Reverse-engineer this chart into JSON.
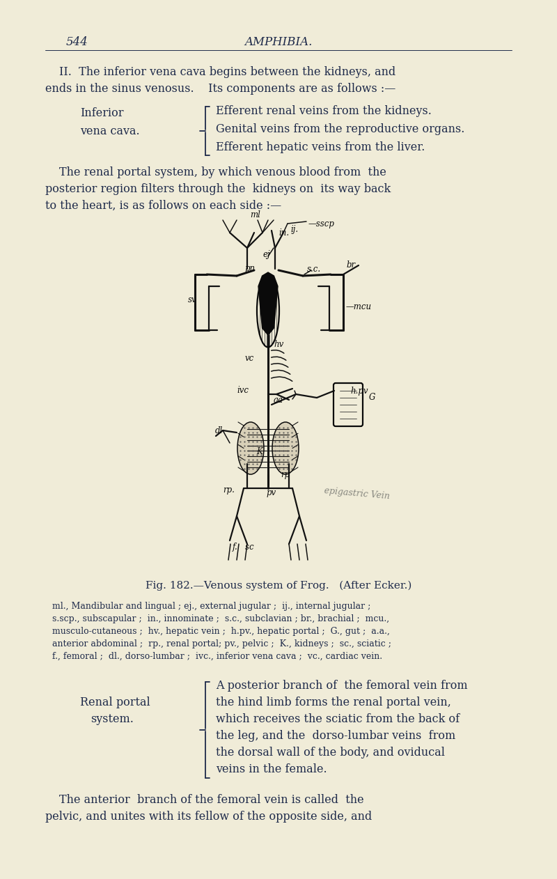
{
  "background_color": "#f0ecd8",
  "text_color": "#1e2a4a",
  "page_number": "544",
  "page_header": "AMPHIBIA.",
  "para1_line1": "II.  The inferior vena cava begins between the kidneys, and",
  "para1_line2": "ends in the sinus venosus.    Its components are as follows :—",
  "label_left1": "Inferior",
  "label_left2": "vena cava.",
  "brace_items": [
    "Efferent renal veins from the kidneys.",
    "Genital veins from the reproductive organs.",
    "Efferent hepatic veins from the liver."
  ],
  "para2_line1": "The renal portal system, by which venous blood from  the",
  "para2_line2": "posterior region filters through the  kidneys on  its way back",
  "para2_line3": "to the heart, is as follows on each side :—",
  "fig_caption_prefix": "Fig. 182.",
  "fig_caption_rest": "—Venous system of Frog.   (After Ecker.)",
  "fig_legend_italic": "ml",
  "fig_legend_full": "ml., Mandibular and lingual ; ej., external jugular ;  ij., internal jugular ;  s.scp., subscapular ;  in., innominate ;  s.c., subclavian ; br., brachial ;  mcu., musculo-cutaneous ;  hv., hepatic vein ;  h.pv., hepatic portal ;  G., gut ;  a.a., anterior abdominal ;  rp., renal portal; pv., pelvic ;  K., kidneys ;  sc., sciatic ;  f., femoral ;  dl., dorso-lumbar ;  ivc., inferior vena cava ;  vc., cardiac vein.",
  "label_rp1": "Renal portal",
  "label_rp2": "system.",
  "brace_items2_line1": "A posterior branch of  the femoral vein from",
  "brace_items2_line2": "the hind limb forms the renal portal vein,",
  "brace_items2_line3": "which receives the sciatic from the back of",
  "brace_items2_line4": "the leg, and the  dorso-lumbar veins  from",
  "brace_items2_line5": "the dorsal wall of the body, and oviducal",
  "brace_items2_line6": "veins in the female.",
  "para3_line1": "The anterior  branch of the femoral vein is called  the",
  "para3_line2": "pelvic, and unites with its fellow of the opposite side, and",
  "handwriting": "epigastric Vein"
}
